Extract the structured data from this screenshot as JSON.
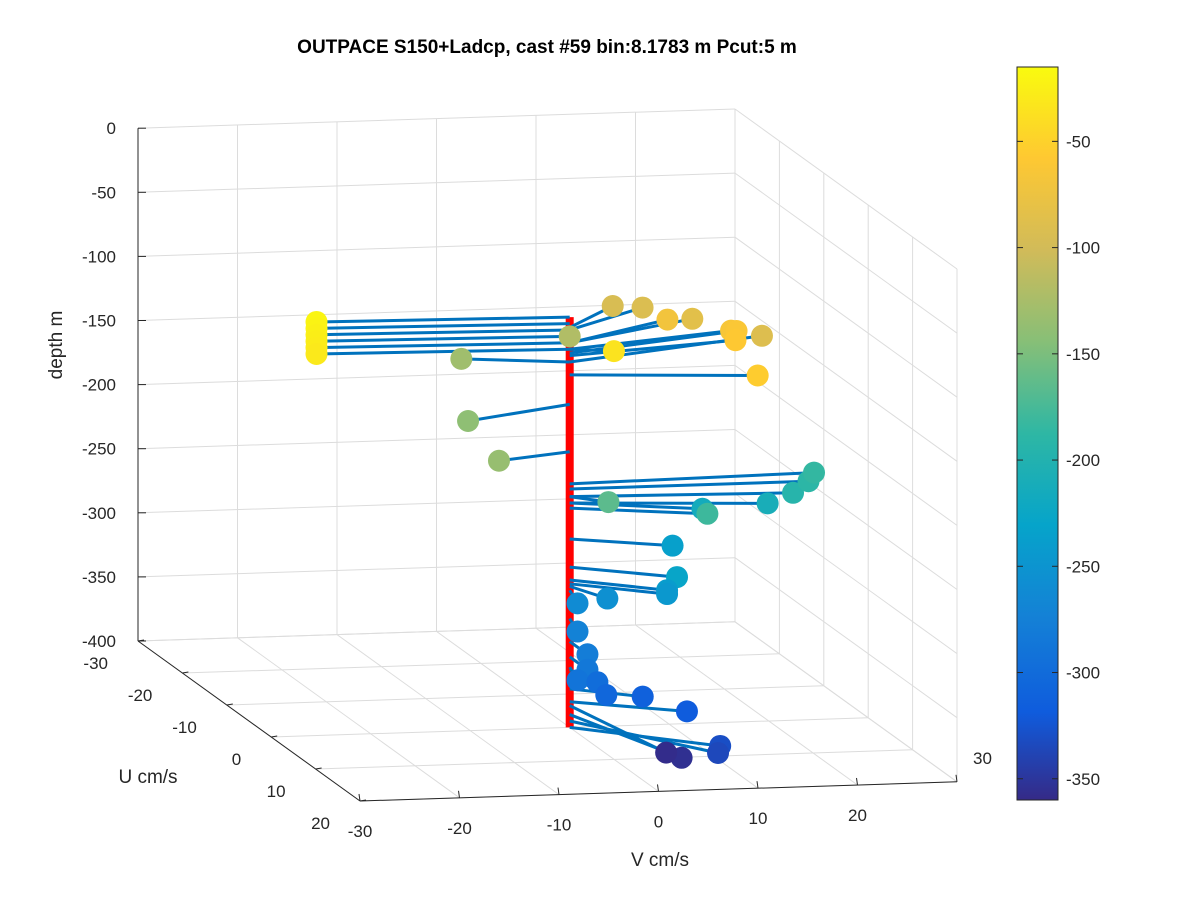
{
  "chart_data": {
    "type": "scatter",
    "title": "OUTPACE S150+Ladcp, cast #59 bin:8.1783 m  Pcut:5 m",
    "xlabel": "U cm/s",
    "ylabel": "V cm/s",
    "zlabel": "depth m",
    "xlim": [
      -30,
      20
    ],
    "ylim": [
      -30,
      30
    ],
    "zlim": [
      -400,
      0
    ],
    "xticks": [
      "-30",
      "-20",
      "-10",
      "0",
      "10",
      "20"
    ],
    "yticks": [
      "-30",
      "-20",
      "-10",
      "0",
      "10",
      "20",
      "30"
    ],
    "zticks": [
      "0",
      "-50",
      "-100",
      "-150",
      "-200",
      "-250",
      "-300",
      "-350",
      "-400"
    ],
    "grid": true,
    "colormap": "parula",
    "colorbar": {
      "min": -360,
      "max": -15,
      "ticks": [
        "-50",
        "-100",
        "-150",
        "-200",
        "-250",
        "-300",
        "-350"
      ]
    },
    "profile_color": "#ff0000",
    "vector_color": "#0072bd",
    "points": [
      {
        "u": -1,
        "v": -25,
        "z": -80,
        "c": -20
      },
      {
        "u": -1,
        "v": -25,
        "z": -85,
        "c": -22
      },
      {
        "u": -1,
        "v": -25,
        "z": -90,
        "c": -24
      },
      {
        "u": -1,
        "v": -25,
        "z": -95,
        "c": -26
      },
      {
        "u": -1,
        "v": -25,
        "z": -100,
        "c": -28
      },
      {
        "u": -1,
        "v": -25,
        "z": -105,
        "c": -30
      },
      {
        "u": 0,
        "v": 0,
        "z": -95,
        "c": -120
      },
      {
        "u": -2,
        "v": -10,
        "z": -115,
        "c": -130
      },
      {
        "u": -6,
        "v": 7,
        "z": -88,
        "c": -95
      },
      {
        "u": -6,
        "v": 10,
        "z": -90,
        "c": -92
      },
      {
        "u": -6,
        "v": 12.5,
        "z": -100,
        "c": -70
      },
      {
        "u": -6,
        "v": 15,
        "z": -100,
        "c": -85
      },
      {
        "u": -4,
        "v": 18,
        "z": -105,
        "c": -65
      },
      {
        "u": -5,
        "v": 19,
        "z": -108,
        "c": -62
      },
      {
        "u": -3,
        "v": 18,
        "z": -110,
        "c": -58
      },
      {
        "u": -6,
        "v": 22,
        "z": -115,
        "c": -90
      },
      {
        "u": 1,
        "v": 4,
        "z": -105,
        "c": -35
      },
      {
        "u": 2,
        "v": 18,
        "z": -125,
        "c": -55
      },
      {
        "u": 4,
        "v": -12,
        "z": -148,
        "c": -140
      },
      {
        "u": 2,
        "v": -8,
        "z": -185,
        "c": -135
      },
      {
        "u": 2,
        "v": 3,
        "z": -220,
        "c": -165
      },
      {
        "u": 3,
        "v": 12,
        "z": -225,
        "c": -215
      },
      {
        "u": 3,
        "v": 12.5,
        "z": -229,
        "c": -180
      },
      {
        "u": 2,
        "v": 19,
        "z": -225,
        "c": -210
      },
      {
        "u": 1,
        "v": 22,
        "z": -220,
        "c": -195
      },
      {
        "u": 0,
        "v": 24,
        "z": -214,
        "c": -190
      },
      {
        "u": -1,
        "v": 25,
        "z": -210,
        "c": -185
      },
      {
        "u": 3,
        "v": 9,
        "z": -253,
        "c": -235
      },
      {
        "u": 4,
        "v": 9,
        "z": -275,
        "c": -228
      },
      {
        "u": 4,
        "v": 8,
        "z": -285,
        "c": -240
      },
      {
        "u": 4,
        "v": 8,
        "z": -288,
        "c": -245
      },
      {
        "u": 4,
        "v": 2,
        "z": -290,
        "c": -255
      },
      {
        "u": 4,
        "v": -1,
        "z": -293,
        "c": -262
      },
      {
        "u": 4,
        "v": -1,
        "z": -315,
        "c": -272
      },
      {
        "u": 4,
        "v": 0,
        "z": -333,
        "c": -278
      },
      {
        "u": 4,
        "v": 0,
        "z": -345,
        "c": -285
      },
      {
        "u": 4,
        "v": -1,
        "z": -353,
        "c": -290
      },
      {
        "u": 4,
        "v": 1,
        "z": -355,
        "c": -298
      },
      {
        "u": 6,
        "v": 1,
        "z": -360,
        "c": -305
      },
      {
        "u": 3,
        "v": 6,
        "z": -370,
        "c": -312
      },
      {
        "u": 4,
        "v": 10,
        "z": -380,
        "c": -318
      },
      {
        "u": 7,
        "v": 12,
        "z": -400,
        "c": -330
      },
      {
        "u": 11,
        "v": 10,
        "z": -395,
        "c": -335
      },
      {
        "u": 14,
        "v": 5,
        "z": -390,
        "c": -355
      },
      {
        "u": 15,
        "v": 3,
        "z": -383,
        "c": -358
      }
    ]
  }
}
